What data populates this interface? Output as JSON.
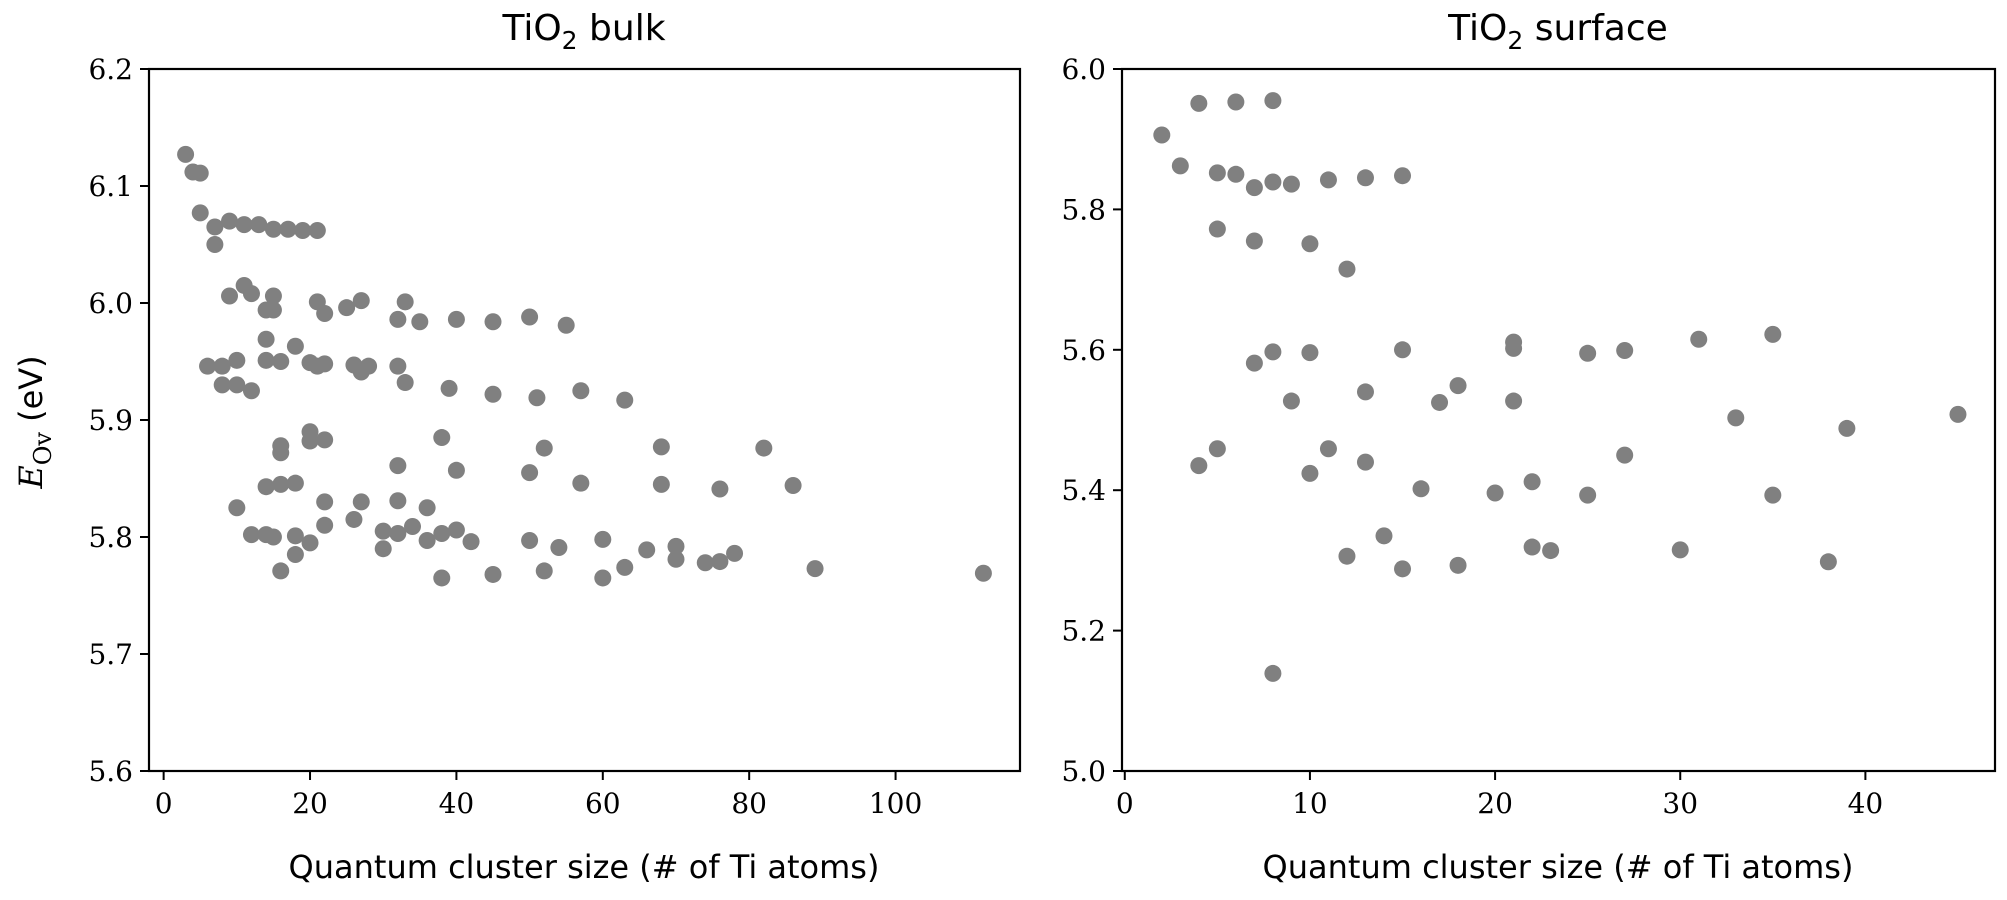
{
  "chart_data": [
    {
      "type": "scatter",
      "title": "TiO2 bulk",
      "title_main": "TiO",
      "title_sub": "2",
      "title_rest": " bulk",
      "xlabel": "Quantum cluster size (# of Ti atoms)",
      "ylabel_main": "E",
      "ylabel_sub": "Ov",
      "ylabel_rest": " (eV)",
      "xlim": [
        -2,
        117
      ],
      "ylim": [
        5.6,
        6.2
      ],
      "xticks": [
        0,
        20,
        40,
        60,
        80,
        100
      ],
      "yticks": [
        5.6,
        5.7,
        5.8,
        5.9,
        6.0,
        6.1,
        6.2
      ],
      "xtick_labels": [
        "0",
        "20",
        "40",
        "60",
        "80",
        "100"
      ],
      "ytick_labels": [
        "5.6",
        "5.7",
        "5.8",
        "5.9",
        "6.0",
        "6.1",
        "6.2"
      ],
      "grid": false,
      "color": "#808080",
      "points": [
        [
          3,
          6.127
        ],
        [
          4,
          6.112
        ],
        [
          5,
          6.111
        ],
        [
          5,
          6.077
        ],
        [
          7,
          6.065
        ],
        [
          7,
          6.05
        ],
        [
          9,
          6.07
        ],
        [
          11,
          6.067
        ],
        [
          13,
          6.067
        ],
        [
          15,
          6.063
        ],
        [
          17,
          6.063
        ],
        [
          19,
          6.062
        ],
        [
          21,
          6.062
        ],
        [
          9,
          6.006
        ],
        [
          11,
          6.015
        ],
        [
          12,
          6.008
        ],
        [
          14,
          5.994
        ],
        [
          15,
          6.006
        ],
        [
          15,
          5.994
        ],
        [
          14,
          5.969
        ],
        [
          14,
          5.951
        ],
        [
          16,
          5.95
        ],
        [
          18,
          5.963
        ],
        [
          20,
          5.949
        ],
        [
          21,
          5.946
        ],
        [
          22,
          5.948
        ],
        [
          6,
          5.946
        ],
        [
          8,
          5.946
        ],
        [
          8,
          5.93
        ],
        [
          10,
          5.951
        ],
        [
          10,
          5.93
        ],
        [
          12,
          5.925
        ],
        [
          21,
          6.001
        ],
        [
          22,
          5.991
        ],
        [
          25,
          5.996
        ],
        [
          27,
          6.002
        ],
        [
          26,
          5.947
        ],
        [
          27,
          5.941
        ],
        [
          28,
          5.946
        ],
        [
          32,
          5.986
        ],
        [
          33,
          6.001
        ],
        [
          35,
          5.984
        ],
        [
          32,
          5.946
        ],
        [
          33,
          5.932
        ],
        [
          39,
          5.927
        ],
        [
          40,
          5.986
        ],
        [
          45,
          5.984
        ],
        [
          45,
          5.922
        ],
        [
          50,
          5.988
        ],
        [
          51,
          5.919
        ],
        [
          55,
          5.981
        ],
        [
          57,
          5.925
        ],
        [
          63,
          5.917
        ],
        [
          20,
          5.89
        ],
        [
          20,
          5.882
        ],
        [
          22,
          5.883
        ],
        [
          16,
          5.878
        ],
        [
          16,
          5.872
        ],
        [
          14,
          5.843
        ],
        [
          16,
          5.845
        ],
        [
          18,
          5.846
        ],
        [
          10,
          5.825
        ],
        [
          12,
          5.802
        ],
        [
          14,
          5.802
        ],
        [
          15,
          5.8
        ],
        [
          18,
          5.801
        ],
        [
          20,
          5.795
        ],
        [
          18,
          5.785
        ],
        [
          16,
          5.771
        ],
        [
          22,
          5.83
        ],
        [
          22,
          5.81
        ],
        [
          26,
          5.815
        ],
        [
          27,
          5.83
        ],
        [
          30,
          5.805
        ],
        [
          30,
          5.79
        ],
        [
          32,
          5.861
        ],
        [
          32,
          5.831
        ],
        [
          32,
          5.803
        ],
        [
          34,
          5.809
        ],
        [
          36,
          5.825
        ],
        [
          36,
          5.797
        ],
        [
          38,
          5.885
        ],
        [
          38,
          5.803
        ],
        [
          38,
          5.765
        ],
        [
          40,
          5.857
        ],
        [
          40,
          5.806
        ],
        [
          42,
          5.796
        ],
        [
          45,
          5.768
        ],
        [
          50,
          5.855
        ],
        [
          50,
          5.797
        ],
        [
          52,
          5.876
        ],
        [
          52,
          5.771
        ],
        [
          54,
          5.791
        ],
        [
          57,
          5.846
        ],
        [
          60,
          5.798
        ],
        [
          60,
          5.765
        ],
        [
          63,
          5.774
        ],
        [
          66,
          5.789
        ],
        [
          68,
          5.877
        ],
        [
          68,
          5.845
        ],
        [
          70,
          5.792
        ],
        [
          70,
          5.781
        ],
        [
          74,
          5.778
        ],
        [
          76,
          5.841
        ],
        [
          76,
          5.779
        ],
        [
          78,
          5.786
        ],
        [
          82,
          5.876
        ],
        [
          86,
          5.844
        ],
        [
          89,
          5.773
        ],
        [
          112,
          5.769
        ]
      ]
    },
    {
      "type": "scatter",
      "title": "TiO2 surface",
      "title_main": "TiO",
      "title_sub": "2",
      "title_rest": " surface",
      "xlabel": "Quantum cluster size (# of Ti atoms)",
      "xlim": [
        -0.15,
        47
      ],
      "ylim": [
        5.0,
        6.0
      ],
      "xticks": [
        0,
        10,
        20,
        30,
        40
      ],
      "yticks": [
        5.0,
        5.2,
        5.4,
        5.6,
        5.8,
        6.0
      ],
      "xtick_labels": [
        "0",
        "10",
        "20",
        "30",
        "40"
      ],
      "ytick_labels": [
        "5.0",
        "5.2",
        "5.4",
        "5.6",
        "5.8",
        "6.0"
      ],
      "grid": false,
      "color": "#808080",
      "points": [
        [
          2,
          5.906
        ],
        [
          3,
          5.862
        ],
        [
          4,
          5.951
        ],
        [
          6,
          5.953
        ],
        [
          8,
          5.955
        ],
        [
          5,
          5.852
        ],
        [
          6,
          5.85
        ],
        [
          7,
          5.831
        ],
        [
          8,
          5.839
        ],
        [
          9,
          5.836
        ],
        [
          11,
          5.842
        ],
        [
          13,
          5.845
        ],
        [
          15,
          5.848
        ],
        [
          5,
          5.772
        ],
        [
          7,
          5.755
        ],
        [
          10,
          5.751
        ],
        [
          12,
          5.715
        ],
        [
          7,
          5.581
        ],
        [
          8,
          5.597
        ],
        [
          10,
          5.596
        ],
        [
          9,
          5.527
        ],
        [
          15,
          5.6
        ],
        [
          13,
          5.54
        ],
        [
          17,
          5.525
        ],
        [
          18,
          5.549
        ],
        [
          21,
          5.611
        ],
        [
          21,
          5.602
        ],
        [
          21,
          5.527
        ],
        [
          25,
          5.595
        ],
        [
          27,
          5.599
        ],
        [
          31,
          5.615
        ],
        [
          33,
          5.503
        ],
        [
          35,
          5.622
        ],
        [
          39,
          5.488
        ],
        [
          45,
          5.508
        ],
        [
          4,
          5.435
        ],
        [
          5,
          5.459
        ],
        [
          10,
          5.424
        ],
        [
          11,
          5.459
        ],
        [
          13,
          5.44
        ],
        [
          16,
          5.402
        ],
        [
          20,
          5.396
        ],
        [
          22,
          5.412
        ],
        [
          25,
          5.393
        ],
        [
          27,
          5.45
        ],
        [
          35,
          5.393
        ],
        [
          12,
          5.306
        ],
        [
          14,
          5.335
        ],
        [
          15,
          5.288
        ],
        [
          18,
          5.293
        ],
        [
          22,
          5.319
        ],
        [
          23,
          5.314
        ],
        [
          30,
          5.315
        ],
        [
          38,
          5.298
        ],
        [
          8,
          5.139
        ]
      ]
    }
  ]
}
